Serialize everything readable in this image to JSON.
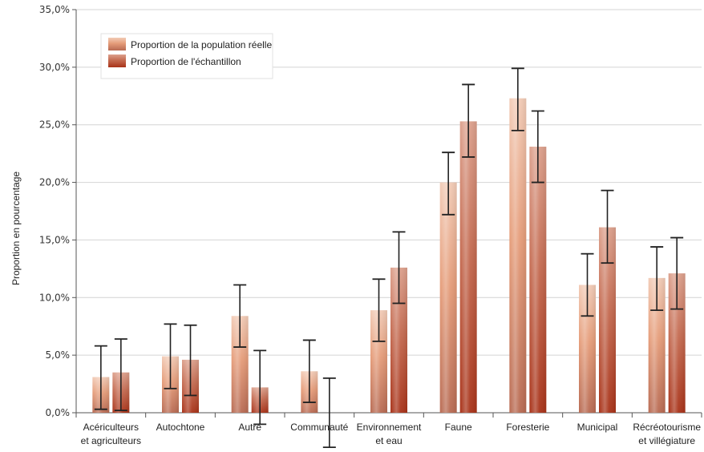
{
  "chart_data": {
    "type": "bar",
    "ylabel": "Proportion en pourcentage",
    "ylim": [
      0,
      35
    ],
    "y_ticks": [
      "0,0%",
      "5,0%",
      "10,0%",
      "15,0%",
      "20,0%",
      "25,0%",
      "30,0%",
      "35,0%"
    ],
    "categories": [
      [
        "Acériculteurs",
        "et agriculteurs"
      ],
      [
        "Autochtone"
      ],
      [
        "Autre"
      ],
      [
        "Communauté"
      ],
      [
        "Environnement",
        "et eau"
      ],
      [
        "Faune"
      ],
      [
        "Foresterie"
      ],
      [
        "Municipal"
      ],
      [
        "Récréotourisme",
        "et villégiature"
      ]
    ],
    "series": [
      {
        "name": "Proportion de la population réelle",
        "values": [
          3.1,
          4.9,
          8.4,
          3.6,
          8.9,
          20.0,
          27.3,
          11.1,
          11.7
        ],
        "err_low": [
          0.3,
          2.1,
          5.7,
          0.9,
          6.2,
          17.2,
          24.5,
          8.4,
          8.9
        ],
        "err_high": [
          5.8,
          7.7,
          11.1,
          6.3,
          11.6,
          22.6,
          29.9,
          13.8,
          14.4
        ]
      },
      {
        "name": "Proportion de l'échantillon",
        "values": [
          3.5,
          4.6,
          2.2,
          0.0,
          12.6,
          25.3,
          23.1,
          16.1,
          12.1
        ],
        "err_low": [
          0.2,
          1.5,
          -1.0,
          -3.0,
          9.5,
          22.2,
          20.0,
          13.0,
          9.0
        ],
        "err_high": [
          6.4,
          7.6,
          5.4,
          3.0,
          15.7,
          28.5,
          26.2,
          19.3,
          15.2
        ]
      }
    ],
    "colors": {
      "series1_light": "#f2cbb6",
      "series1_mid": "#e59c79",
      "series1_dark": "#b86a52",
      "series2_light": "#dca08c",
      "series2_mid": "#c46a50",
      "series2_dark": "#a83218",
      "grid": "#d4d4d4",
      "errorbar": "#222222"
    },
    "grid": true,
    "legend_position": "top-left"
  }
}
